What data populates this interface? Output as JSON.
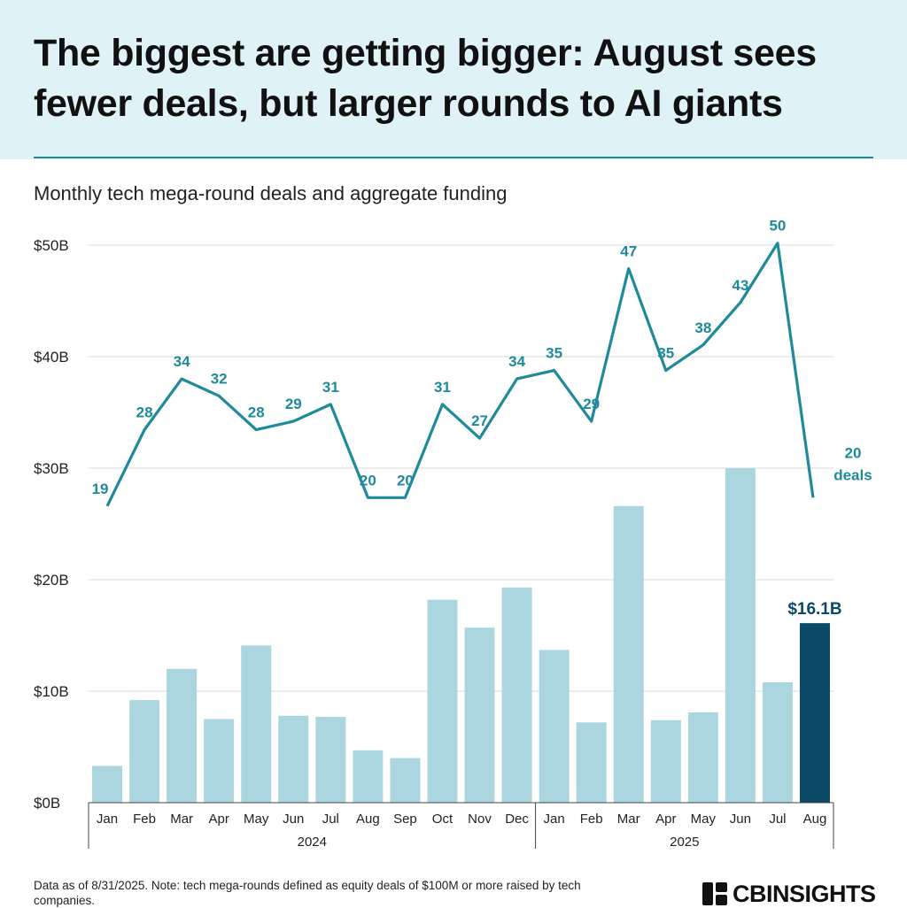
{
  "header": {
    "title": "The biggest are getting bigger: August sees fewer deals, but larger rounds to AI giants",
    "subtitle": "Monthly tech mega-round deals and aggregate funding"
  },
  "footer": {
    "note": "Data as of 8/31/2025. Note: tech mega-rounds defined as equity deals of $100M or more raised by tech companies.",
    "logo_text": "CBINSIGHTS",
    "logo_icon": "cb-logo-icon"
  },
  "colors": {
    "bar": "#acd6df",
    "bar_highlight": "#0b4a66",
    "line": "#1f8a99",
    "grid": "#d9d9d9"
  },
  "chart_data": {
    "type": "bar",
    "categories": [
      "Jan",
      "Feb",
      "Mar",
      "Apr",
      "May",
      "Jun",
      "Jul",
      "Aug",
      "Sep",
      "Oct",
      "Nov",
      "Dec",
      "Jan",
      "Feb",
      "Mar",
      "Apr",
      "May",
      "Jun",
      "Jul",
      "Aug"
    ],
    "groups": [
      {
        "label": "2024",
        "count": 12
      },
      {
        "label": "2025",
        "count": 8
      }
    ],
    "y_ticks": [
      "$0B",
      "$10B",
      "$20B",
      "$30B",
      "$40B",
      "$50B"
    ],
    "ylim": [
      0,
      50
    ],
    "grid": true,
    "series": [
      {
        "type": "bar",
        "values": [
          3.3,
          9.2,
          12.0,
          7.5,
          14.1,
          7.8,
          7.7,
          4.7,
          4.0,
          18.2,
          15.7,
          19.3,
          13.7,
          7.2,
          26.6,
          7.4,
          8.1,
          30.0,
          10.8,
          16.1
        ],
        "highlight_index": 19,
        "highlight_label": "$16.1B"
      },
      {
        "type": "line",
        "values": [
          19,
          28,
          34,
          32,
          28,
          29,
          31,
          20,
          20,
          31,
          27,
          34,
          35,
          29,
          47,
          35,
          38,
          43,
          50,
          20
        ],
        "labels": [
          "19",
          "28",
          "34",
          "32",
          "28",
          "29",
          "31",
          "20",
          "20",
          "31",
          "27",
          "34",
          "35",
          "29",
          "47",
          "35",
          "38",
          "43",
          "50",
          "20"
        ],
        "end_annotation": "deals"
      }
    ]
  }
}
